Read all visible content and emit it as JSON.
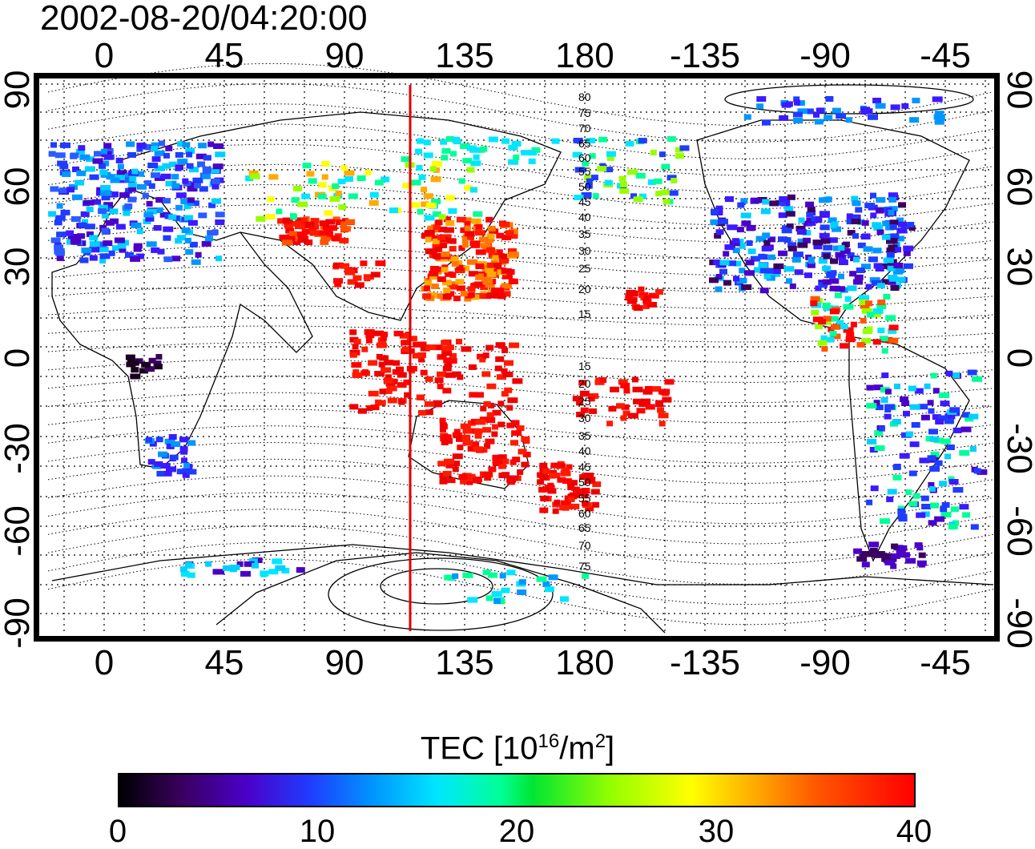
{
  "timestamp": "2002-08-20/04:20:00",
  "map": {
    "lon_ticks": [
      "0",
      "45",
      "90",
      "135",
      "180",
      "-135",
      "-90",
      "-45"
    ],
    "lat_ticks": [
      "90",
      "60",
      "30",
      "0",
      "-30",
      "-60",
      "-90"
    ],
    "contour_labels": [
      "80",
      "75",
      "70",
      "65",
      "60",
      "55",
      "50",
      "45",
      "40",
      "35",
      "30",
      "25",
      "20",
      "15",
      "15",
      "20",
      "25",
      "30",
      "35",
      "40",
      "45",
      "50",
      "55",
      "60",
      "65",
      "70",
      "75"
    ],
    "terminator_color": "#e00000",
    "grid": "dotted"
  },
  "colorbar": {
    "title_prefix": "TEC  [10",
    "title_sup1": "16",
    "title_mid": "/m",
    "title_sup2": "2",
    "title_suffix": "]",
    "labels": [
      "0",
      "10",
      "20",
      "30",
      "40"
    ],
    "range": [
      0,
      40
    ]
  }
}
